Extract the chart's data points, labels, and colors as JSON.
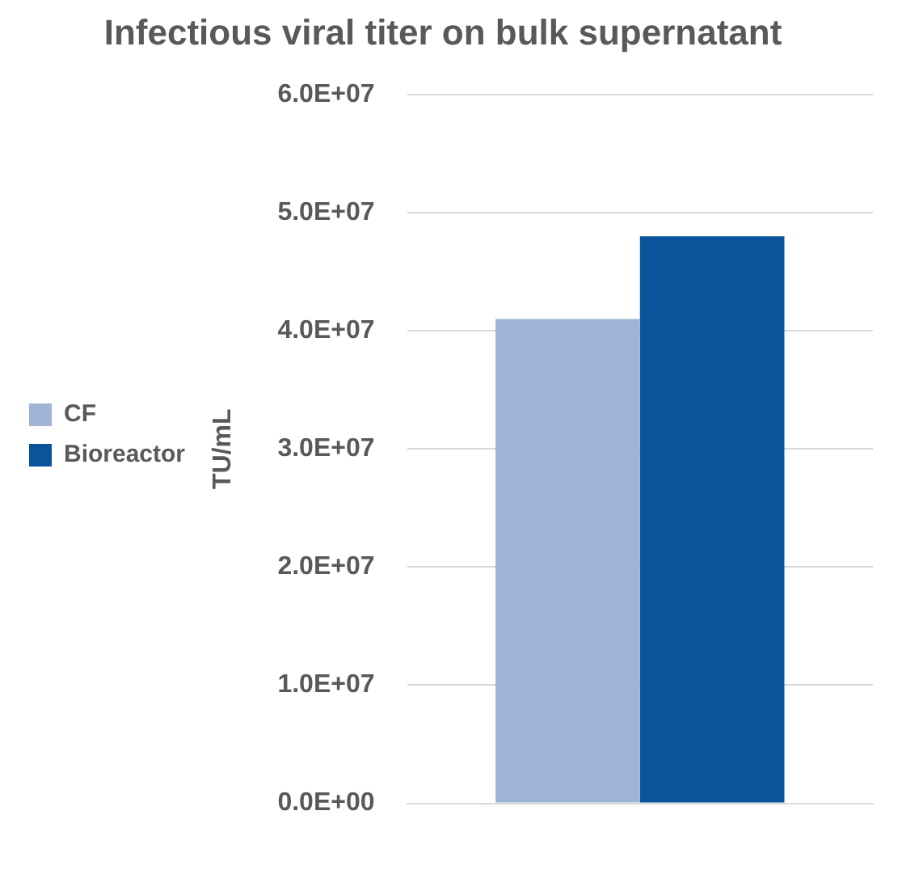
{
  "chart_data": {
    "type": "bar",
    "title": "Infectious viral titer on bulk supernatant",
    "ylabel": "TU/mL",
    "categories": [
      null
    ],
    "series": [
      {
        "name": "CF",
        "color": "#9fb4d6",
        "values": [
          41000000
        ]
      },
      {
        "name": "Bioreactor",
        "color": "#0b549c",
        "values": [
          48000000
        ]
      }
    ],
    "ylim": [
      0,
      60000000
    ],
    "yticks": [
      {
        "value": 0,
        "label": "0.0E+00"
      },
      {
        "value": 10000000,
        "label": "1.0E+07"
      },
      {
        "value": 20000000,
        "label": "2.0E+07"
      },
      {
        "value": 30000000,
        "label": "3.0E+07"
      },
      {
        "value": 40000000,
        "label": "4.0E+07"
      },
      {
        "value": 50000000,
        "label": "5.0E+07"
      },
      {
        "value": 60000000,
        "label": "6.0E+07"
      }
    ],
    "grid": "y",
    "legend": "left"
  }
}
